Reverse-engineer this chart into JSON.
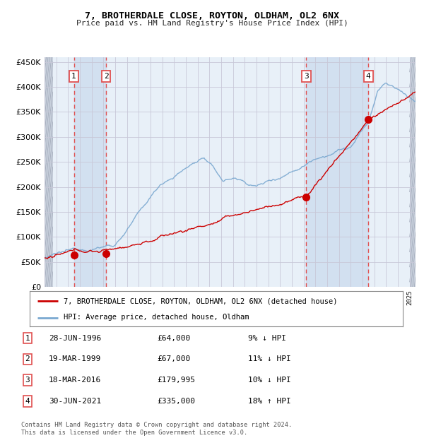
{
  "title1": "7, BROTHERDALE CLOSE, ROYTON, OLDHAM, OL2 6NX",
  "title2": "Price paid vs. HM Land Registry's House Price Index (HPI)",
  "background_color": "#ffffff",
  "plot_bg_color": "#e8f0f8",
  "hatch_color": "#c8d0dc",
  "band_color": "#d0dff0",
  "grid_color": "#c8c8d8",
  "ylim": [
    0,
    460000
  ],
  "yticks": [
    0,
    50000,
    100000,
    150000,
    200000,
    250000,
    300000,
    350000,
    400000,
    450000
  ],
  "ytick_labels": [
    "£0",
    "£50K",
    "£100K",
    "£150K",
    "£200K",
    "£250K",
    "£300K",
    "£350K",
    "£400K",
    "£450K"
  ],
  "xmin": 1994.0,
  "xmax": 2025.5,
  "sale_dates": [
    1996.49,
    1999.22,
    2016.21,
    2021.49
  ],
  "sale_prices": [
    64000,
    67000,
    179995,
    335000
  ],
  "sale_labels": [
    "1",
    "2",
    "3",
    "4"
  ],
  "legend_red": "7, BROTHERDALE CLOSE, ROYTON, OLDHAM, OL2 6NX (detached house)",
  "legend_blue": "HPI: Average price, detached house, Oldham",
  "table_rows": [
    [
      "1",
      "28-JUN-1996",
      "£64,000",
      "9% ↓ HPI"
    ],
    [
      "2",
      "19-MAR-1999",
      "£67,000",
      "11% ↓ HPI"
    ],
    [
      "3",
      "18-MAR-2016",
      "£179,995",
      "10% ↓ HPI"
    ],
    [
      "4",
      "30-JUN-2021",
      "£335,000",
      "18% ↑ HPI"
    ]
  ],
  "footnote": "Contains HM Land Registry data © Crown copyright and database right 2024.\nThis data is licensed under the Open Government Licence v3.0.",
  "red_color": "#cc0000",
  "blue_color": "#7aa8d0",
  "dashed_color": "#e05050"
}
